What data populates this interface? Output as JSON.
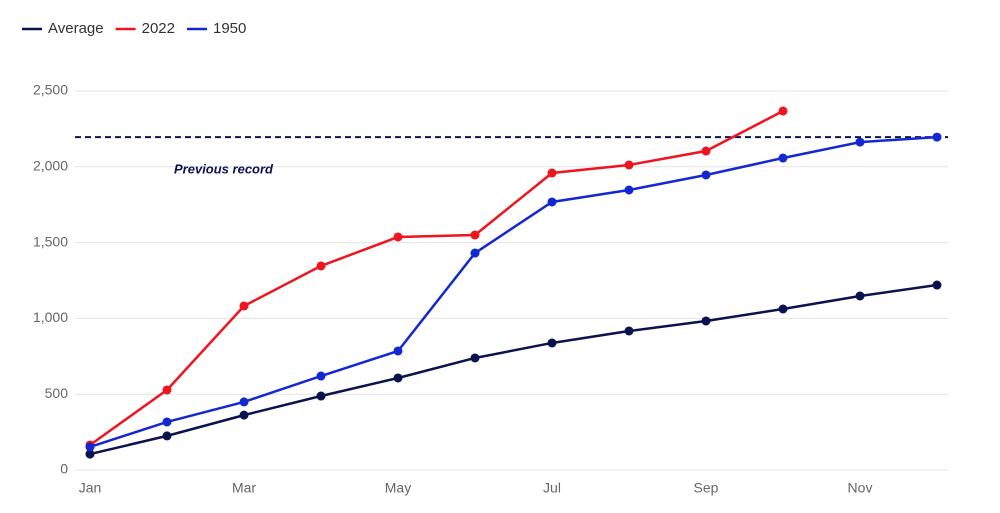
{
  "chart_data": {
    "type": "line",
    "categories": [
      "Jan",
      null,
      "Mar",
      null,
      "May",
      null,
      "Jul",
      null,
      "Sep",
      null,
      "Nov",
      null
    ],
    "series": [
      {
        "name": "Average",
        "color": "#0a1250",
        "values": [
          105,
          225,
          362,
          488,
          607,
          739,
          838,
          917,
          983,
          1062,
          1148,
          1220
        ]
      },
      {
        "name": "2022",
        "color": "#f0141e",
        "values": [
          165,
          528,
          1082,
          1346,
          1537,
          1550,
          1959,
          2012,
          2104,
          2368,
          null,
          null
        ]
      },
      {
        "name": "1950",
        "color": "#1428d2",
        "values": [
          152,
          317,
          449,
          620,
          785,
          1431,
          1768,
          1847,
          1946,
          2058,
          2163,
          2196
        ]
      }
    ],
    "annotation": {
      "label": "Previous record",
      "value": 2196,
      "color": "#0a1250"
    },
    "ylim": [
      0,
      2500
    ],
    "yticks": [
      0,
      500,
      {
        "value": 1000,
        "label": "1,000"
      },
      {
        "value": 1500,
        "label": "1,500"
      },
      {
        "value": 2000,
        "label": "2,000"
      },
      {
        "value": 2500,
        "label": "2,500"
      }
    ],
    "grid": true,
    "legend": "top-left"
  }
}
